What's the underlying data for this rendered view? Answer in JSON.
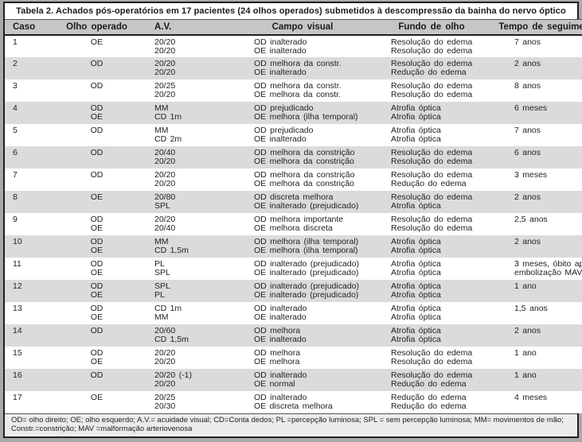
{
  "title": "Tabela 2. Achados pós-operatórios em 17 pacientes (24 olhos operados) submetidos à descompressão da bainha do nervo óptico",
  "colors": {
    "page_margin": "#a9a9a9",
    "frame_border": "#1f1f1f",
    "header_bg": "#c5c7c6",
    "row_alt_bg": "#dbdbdb",
    "footnote_bg": "#ebebeb",
    "text": "#1a1a1a"
  },
  "table": {
    "columns": [
      "Caso",
      "Olho operado",
      "A.V.",
      "Campo visual",
      "Fundo de olho",
      "Tempo de seguimento"
    ],
    "rows": [
      {
        "caso": "1",
        "olho": [
          "OE",
          ""
        ],
        "av": [
          "20/20",
          "20/20"
        ],
        "campo": [
          "OD inalterado",
          "OE inalterado"
        ],
        "fundo": [
          "Resolução do edema",
          "Resolução do edema"
        ],
        "tempo": [
          "7 anos",
          ""
        ]
      },
      {
        "caso": "2",
        "olho": [
          "OD",
          ""
        ],
        "av": [
          "20/20",
          "20/20"
        ],
        "campo": [
          "OD melhora da constr.",
          "OE inalterado"
        ],
        "fundo": [
          "Resolução do edema",
          "Redução do edema"
        ],
        "tempo": [
          "2 anos",
          ""
        ]
      },
      {
        "caso": "3",
        "olho": [
          "OD",
          ""
        ],
        "av": [
          "20/25",
          "20/20"
        ],
        "campo": [
          "OD melhora da constr.",
          "OE melhora da constr."
        ],
        "fundo": [
          "Resolução do edema",
          "Resolução do edema"
        ],
        "tempo": [
          "8 anos",
          ""
        ]
      },
      {
        "caso": "4",
        "olho": [
          "OD",
          "OE"
        ],
        "av": [
          "MM",
          "CD 1m"
        ],
        "campo": [
          "OD prejudicado",
          "OE melhora (ilha temporal)"
        ],
        "fundo": [
          "Atrofia óptica",
          "Atrofia óptica"
        ],
        "tempo": [
          "6 meses",
          ""
        ]
      },
      {
        "caso": "5",
        "olho": [
          "OD",
          ""
        ],
        "av": [
          "MM",
          "CD 2m"
        ],
        "campo": [
          "OD prejudicado",
          "OE inalterado"
        ],
        "fundo": [
          "Atrofia óptica",
          "Atrofia óptica"
        ],
        "tempo": [
          "7 anos",
          ""
        ]
      },
      {
        "caso": "6",
        "olho": [
          "OD",
          ""
        ],
        "av": [
          "20/40",
          "20/20"
        ],
        "campo": [
          "OD melhora da constrição",
          "OE melhora da constrição"
        ],
        "fundo": [
          "Resolução do edema",
          "Resolução do edema"
        ],
        "tempo": [
          "6 anos",
          ""
        ]
      },
      {
        "caso": "7",
        "olho": [
          "OD",
          ""
        ],
        "av": [
          "20/20",
          "20/20"
        ],
        "campo": [
          "OD melhora da constrição",
          "OE melhora da constrição"
        ],
        "fundo": [
          "Resolução do edema",
          "Redução do edema"
        ],
        "tempo": [
          "3 meses",
          ""
        ]
      },
      {
        "caso": "8",
        "olho": [
          "OE",
          ""
        ],
        "av": [
          "20/80",
          "SPL"
        ],
        "campo": [
          "OD discreta melhora",
          "OE inalterado (prejudicado)"
        ],
        "fundo": [
          "Resolução do edema",
          "Atrofia óptica"
        ],
        "tempo": [
          "2 anos",
          ""
        ]
      },
      {
        "caso": "9",
        "olho": [
          "OD",
          "OE"
        ],
        "av": [
          "20/20",
          "20/40"
        ],
        "campo": [
          "OD melhora importante",
          "OE melhora discreta"
        ],
        "fundo": [
          "Resolução do edema",
          "Resolução do edema"
        ],
        "tempo": [
          "2,5 anos",
          ""
        ]
      },
      {
        "caso": "10",
        "olho": [
          "OD",
          "OE"
        ],
        "av": [
          "MM",
          "CD 1,5m"
        ],
        "campo": [
          "OD melhora (ilha temporal)",
          "OE melhora (ilha temporal)"
        ],
        "fundo": [
          "Atrofia óptica",
          "Atrofia óptica"
        ],
        "tempo": [
          "2 anos",
          ""
        ]
      },
      {
        "caso": "11",
        "olho": [
          "OD",
          "OE"
        ],
        "av": [
          "PL",
          "SPL"
        ],
        "campo": [
          "OD inalterado (prejudicado)",
          "OE inalterado (prejudicado)"
        ],
        "fundo": [
          "Atrofia óptica",
          "Atrofia óptica"
        ],
        "tempo": [
          "3 meses, óbito após",
          "embolização MAV"
        ]
      },
      {
        "caso": "12",
        "olho": [
          "OD",
          "OE"
        ],
        "av": [
          "SPL",
          "PL"
        ],
        "campo": [
          "OD inalterado (prejudicado)",
          "OE inalterado (prejudicado)"
        ],
        "fundo": [
          "Atrofia óptica",
          "Atrofia óptica"
        ],
        "tempo": [
          "1 ano",
          ""
        ]
      },
      {
        "caso": "13",
        "olho": [
          "OD",
          "OE"
        ],
        "av": [
          "CD 1m",
          "MM"
        ],
        "campo": [
          "OD inalterado",
          "OE inalterado"
        ],
        "fundo": [
          "Atrofia óptica",
          "Atrofia óptica"
        ],
        "tempo": [
          "1,5 anos",
          ""
        ]
      },
      {
        "caso": "14",
        "olho": [
          "OD",
          ""
        ],
        "av": [
          "20/60",
          "CD 1,5m"
        ],
        "campo": [
          "OD melhora",
          "OE inalterado"
        ],
        "fundo": [
          "Atrofia óptica",
          "Atrofia óptica"
        ],
        "tempo": [
          "2 anos",
          ""
        ]
      },
      {
        "caso": "15",
        "olho": [
          "OD",
          "OE"
        ],
        "av": [
          "20/20",
          "20/20"
        ],
        "campo": [
          "OD melhora",
          "OE melhora"
        ],
        "fundo": [
          "Resolução do edema",
          "Resolução do edema"
        ],
        "tempo": [
          "1 ano",
          ""
        ]
      },
      {
        "caso": "16",
        "olho": [
          "OD",
          ""
        ],
        "av": [
          "20/20 (-1)",
          "20/20"
        ],
        "campo": [
          "OD inalterado",
          "OE normal"
        ],
        "fundo": [
          "Resolução do edema",
          "Redução do edema"
        ],
        "tempo": [
          "1 ano",
          ""
        ]
      },
      {
        "caso": "17",
        "olho": [
          "OE",
          ""
        ],
        "av": [
          "20/25",
          "20/30"
        ],
        "campo": [
          "OD inalterado",
          "OE discreta melhora"
        ],
        "fundo": [
          "Redução do edema",
          "Redução do edema"
        ],
        "tempo": [
          "4 meses",
          ""
        ]
      }
    ]
  },
  "footnote": {
    "line1": "OD= olho direito; OE; olho esquerdo; A.V.= acuidade visual; CD=Conta dedos; PL =percepção luminosa; SPL = sem percepção luminosa; MM= movimentos de mão;",
    "line2": "Constr.=constrição; MAV =malformação arteriovenosa"
  }
}
